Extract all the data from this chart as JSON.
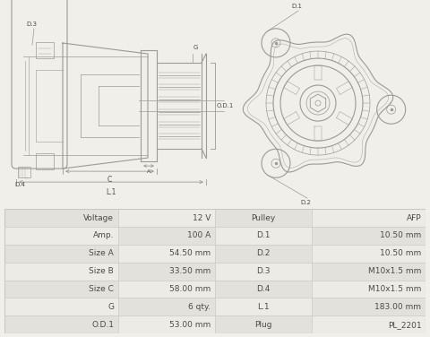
{
  "table": {
    "left_labels": [
      "Voltage",
      "Amp.",
      "Size A",
      "Size B",
      "Size C",
      "G",
      "O.D.1"
    ],
    "left_values": [
      "12 V",
      "100 A",
      "54.50 mm",
      "33.50 mm",
      "58.00 mm",
      "6 qty.",
      "53.00 mm"
    ],
    "right_labels": [
      "Pulley",
      "D.1",
      "D.2",
      "D.3",
      "D.4",
      "L.1",
      "Plug"
    ],
    "right_values": [
      "AFP",
      "10.50 mm",
      "10.50 mm",
      "M10x1.5 mm",
      "M10x1.5 mm",
      "183.00 mm",
      "PL_2201"
    ]
  },
  "bg_color": "#f0efea",
  "table_row_odd": "#e2e1dc",
  "table_row_even": "#ecebe6",
  "border_color": "#c8c7c2",
  "text_color": "#4a4a4a",
  "diagram_color": "#9a9a96",
  "fig_bg": "#f0efea"
}
